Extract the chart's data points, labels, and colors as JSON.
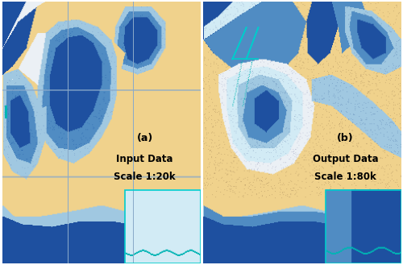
{
  "figsize": [
    5.0,
    3.29
  ],
  "dpi": 100,
  "panel_a": {
    "label": "(a)",
    "text_line1": "Input Data",
    "text_line2": "Scale 1:20k"
  },
  "panel_b": {
    "label": "(b)",
    "text_line1": "Output Data",
    "text_line2": "Scale 1:80k"
  },
  "colors": {
    "sand": [
      240,
      210,
      140
    ],
    "water_deep": [
      30,
      80,
      160
    ],
    "water_mid": [
      80,
      140,
      195
    ],
    "water_shallow": [
      160,
      200,
      225
    ],
    "water_lightest": [
      210,
      235,
      245
    ],
    "white_shallow": [
      235,
      240,
      245
    ],
    "cyan": [
      0,
      200,
      200
    ],
    "border": [
      80,
      80,
      80
    ],
    "text": [
      0,
      0,
      0
    ]
  },
  "label_fontsize": 9,
  "scale_fontsize": 8.5
}
